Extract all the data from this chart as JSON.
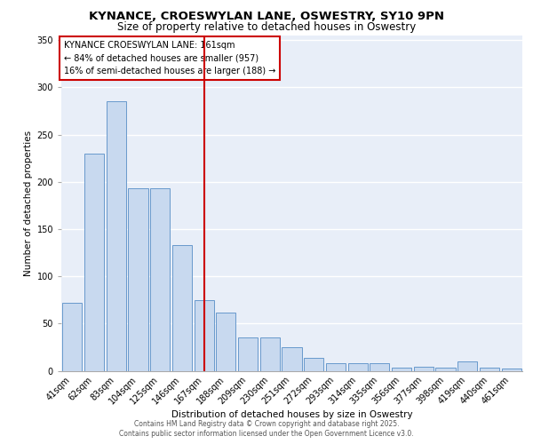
{
  "title1": "KYNANCE, CROESWYLAN LANE, OSWESTRY, SY10 9PN",
  "title2": "Size of property relative to detached houses in Oswestry",
  "xlabel": "Distribution of detached houses by size in Oswestry",
  "ylabel": "Number of detached properties",
  "categories": [
    "41sqm",
    "62sqm",
    "83sqm",
    "104sqm",
    "125sqm",
    "146sqm",
    "167sqm",
    "188sqm",
    "209sqm",
    "230sqm",
    "251sqm",
    "272sqm",
    "293sqm",
    "314sqm",
    "335sqm",
    "356sqm",
    "377sqm",
    "398sqm",
    "419sqm",
    "440sqm",
    "461sqm"
  ],
  "values": [
    72,
    230,
    285,
    193,
    193,
    133,
    75,
    62,
    35,
    35,
    25,
    14,
    8,
    8,
    8,
    3,
    4,
    3,
    10,
    3,
    2
  ],
  "bar_color": "#c8d9ef",
  "bar_edge_color": "#6899cc",
  "vline_x_index": 6,
  "vline_color": "#cc0000",
  "annotation_text": "KYNANCE CROESWYLAN LANE: 161sqm\n← 84% of detached houses are smaller (957)\n16% of semi-detached houses are larger (188) →",
  "annotation_box_color": "#ffffff",
  "annotation_box_edge": "#cc0000",
  "ylim": [
    0,
    355
  ],
  "yticks": [
    0,
    50,
    100,
    150,
    200,
    250,
    300,
    350
  ],
  "bg_color": "#e8eef8",
  "footer_text1": "Contains HM Land Registry data © Crown copyright and database right 2025.",
  "footer_text2": "Contains public sector information licensed under the Open Government Licence v3.0.",
  "title1_fontsize": 9.5,
  "title2_fontsize": 8.5,
  "axis_label_fontsize": 7.5,
  "tick_fontsize": 7,
  "annot_fontsize": 7
}
